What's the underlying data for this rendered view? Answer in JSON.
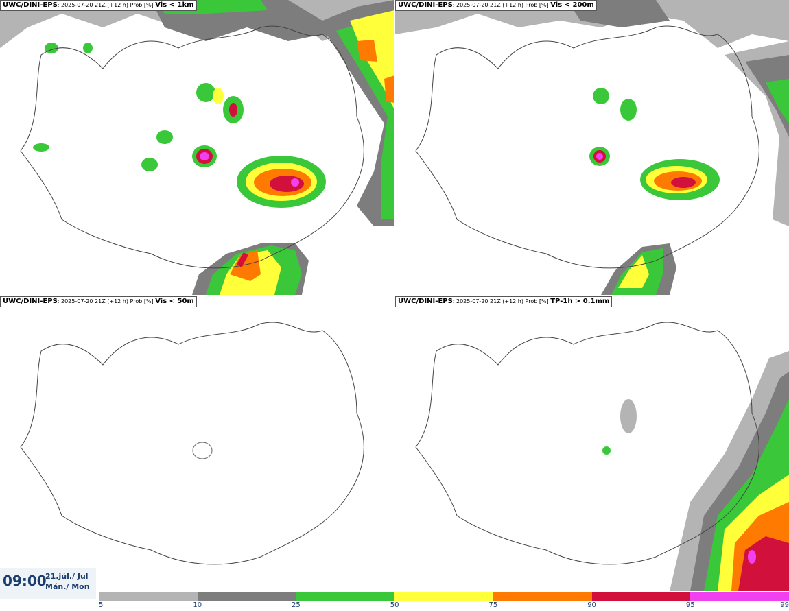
{
  "panels": [
    {
      "source": "UWC/DINI-EPS",
      "desc": ": 2025-07-20 21Z (+12 h) Prob [%] ",
      "variable": "Vis < 1km"
    },
    {
      "source": "UWC/DINI-EPS",
      "desc": ": 2025-07-20 21Z (+12 h) Prob [%] ",
      "variable": "Vis < 200m"
    },
    {
      "source": "UWC/DINI-EPS",
      "desc": ": 2025-07-20 21Z (+12 h) Prob [%] ",
      "variable": "Vis < 50m"
    },
    {
      "source": "UWC/DINI-EPS",
      "desc": ": 2025-07-20 21Z (+12 h) Prob [%] ",
      "variable": "TP-1h > 0.1mm"
    }
  ],
  "time": {
    "clock": "09:00",
    "date_line1": "21.júl./ Jul",
    "date_line2": "Mán./ Mon"
  },
  "legend": {
    "labels": [
      "5",
      "10",
      "25",
      "50",
      "75",
      "90",
      "95",
      "99"
    ],
    "colors": [
      "#b4b4b4",
      "#7d7d7d",
      "#3ac83a",
      "#ffff3a",
      "#ff7a00",
      "#d2103c",
      "#f040f0"
    ]
  }
}
